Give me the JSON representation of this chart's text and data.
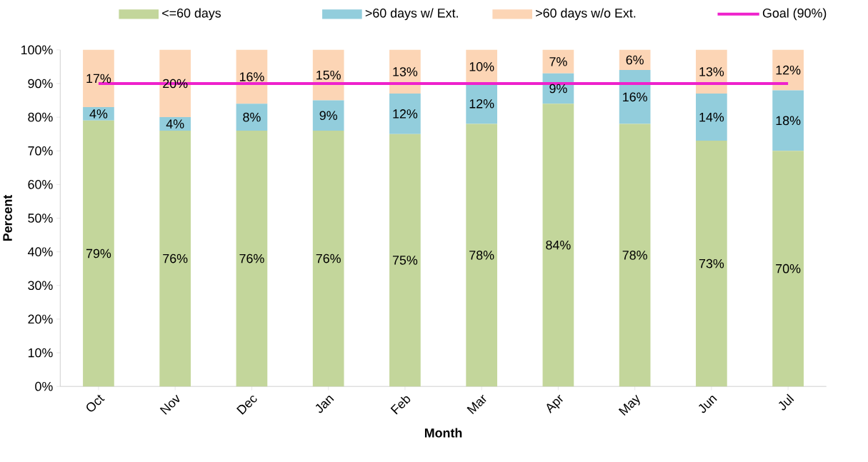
{
  "chart_data": {
    "type": "bar",
    "stacked": true,
    "xlabel": "Month",
    "ylabel": "Percent",
    "categories": [
      "Oct",
      "Nov",
      "Dec",
      "Jan",
      "Feb",
      "Mar",
      "Apr",
      "May",
      "Jun",
      "Jul"
    ],
    "series": [
      {
        "name": "<=60 days",
        "color": "#c3d69b",
        "values": [
          79,
          76,
          76,
          76,
          75,
          78,
          84,
          78,
          73,
          70
        ],
        "value_labels": [
          "79%",
          "76%",
          "76%",
          "76%",
          "75%",
          "78%",
          "84%",
          "78%",
          "73%",
          "70%"
        ]
      },
      {
        "name": ">60 days w/ Ext.",
        "color": "#92cddc",
        "values": [
          4,
          4,
          8,
          9,
          12,
          12,
          9,
          16,
          14,
          18
        ],
        "value_labels": [
          "4%",
          "4%",
          "8%",
          "9%",
          "12%",
          "12%",
          "9%",
          "16%",
          "14%",
          "18%"
        ]
      },
      {
        "name": ">60 days w/o Ext.",
        "color": "#fcd5b5",
        "values": [
          17,
          20,
          16,
          15,
          13,
          10,
          7,
          6,
          13,
          12
        ],
        "value_labels": [
          "17%",
          "20%",
          "16%",
          "15%",
          "13%",
          "10%",
          "7%",
          "6%",
          "13%",
          "12%"
        ]
      },
      {
        "name": "Goal (90%)",
        "type": "line",
        "color": "#ee22cc",
        "marker": "none",
        "values": [
          90,
          90,
          90,
          90,
          90,
          90,
          90,
          90,
          90,
          90
        ]
      }
    ],
    "ylim": [
      0,
      100
    ],
    "yticks": [
      {
        "value": 0,
        "label": "0%"
      },
      {
        "value": 10,
        "label": "10%"
      },
      {
        "value": 20,
        "label": "20%"
      },
      {
        "value": 30,
        "label": "30%"
      },
      {
        "value": 40,
        "label": "40%"
      },
      {
        "value": 50,
        "label": "50%"
      },
      {
        "value": 60,
        "label": "60%"
      },
      {
        "value": 70,
        "label": "70%"
      },
      {
        "value": 80,
        "label": "80%"
      },
      {
        "value": 90,
        "label": "90%"
      },
      {
        "value": 100,
        "label": "100%"
      }
    ],
    "legend": "top"
  }
}
